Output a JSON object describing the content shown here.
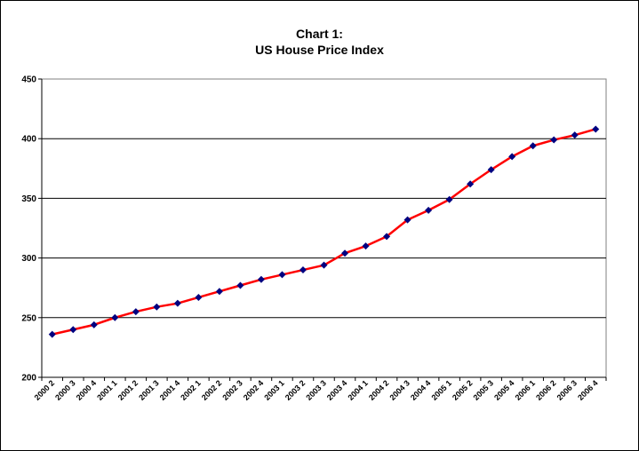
{
  "chart_data": {
    "type": "line",
    "title": "Chart 1:",
    "subtitle": "US House Price Index",
    "xlabel": "",
    "ylabel": "",
    "ylim": [
      200,
      450
    ],
    "yticks": [
      200,
      250,
      300,
      350,
      400,
      450
    ],
    "grid": "horizontal",
    "legend": "none",
    "line_color": "#ff0000",
    "marker_color": "#000080",
    "categories": [
      "2000 2",
      "2000 3",
      "2000 4",
      "2001 1",
      "2001 2",
      "2001 3",
      "2001 4",
      "2002 1",
      "2002 2",
      "2002 3",
      "2002 4",
      "2003 1",
      "2003 2",
      "2003 3",
      "2003 4",
      "2004 1",
      "2004 2",
      "2004 3",
      "2004 4",
      "2005 1",
      "2005 2",
      "2005 3",
      "2005 4",
      "2006 1",
      "2006 2",
      "2006 3",
      "2006 4"
    ],
    "series": [
      {
        "values": [
          236,
          240,
          244,
          250,
          255,
          259,
          262,
          267,
          272,
          277,
          282,
          286,
          290,
          294,
          304,
          310,
          318,
          332,
          340,
          349,
          362,
          374,
          385,
          394,
          399,
          403,
          408
        ]
      }
    ]
  }
}
